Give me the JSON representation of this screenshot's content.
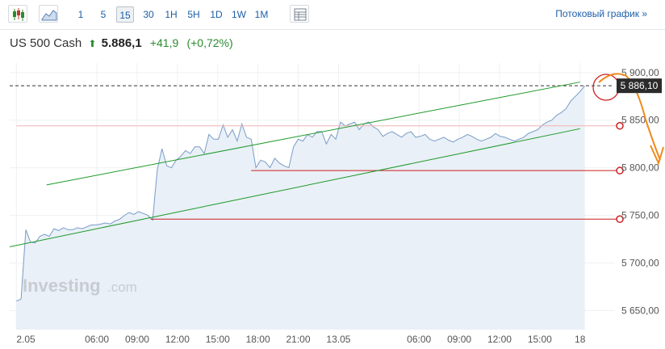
{
  "toolbar": {
    "chart_type_icons": [
      "candlestick-icon",
      "area-chart-icon"
    ],
    "timeframes": [
      "1",
      "5",
      "15",
      "30",
      "1H",
      "5H",
      "1D",
      "1W",
      "1M"
    ],
    "active_timeframe": "15",
    "table_icon": "table-icon",
    "stream_link": "Потоковый график »"
  },
  "header": {
    "instrument": "US 500 Cash",
    "price": "5.886,1",
    "change": "+41,9",
    "change_pct": "(+0,72%)",
    "up_color": "#2a8b2f"
  },
  "watermark": {
    "brand": "Investing",
    "suffix": ".com"
  },
  "chart_data": {
    "type": "area",
    "title": "",
    "xlabel": "",
    "ylabel": "",
    "ylim": [
      5630,
      5910
    ],
    "y_ticks": [
      "5 900,00",
      "5 850,00",
      "5 800,00",
      "5 750,00",
      "5 700,00",
      "5 650,00"
    ],
    "y_tick_values": [
      5900,
      5850,
      5800,
      5750,
      5700,
      5650
    ],
    "x_ticks": [
      "2.05",
      "06:00",
      "09:00",
      "12:00",
      "15:00",
      "18:00",
      "21:00",
      "13.05",
      "06:00",
      "09:00",
      "12:00",
      "15:00",
      "18"
    ],
    "x_tick_index": [
      0,
      24,
      36,
      48,
      60,
      72,
      84,
      96,
      120,
      132,
      144,
      156,
      168
    ],
    "x_index_range": [
      -2,
      176
    ],
    "series": [
      {
        "color": "#7a9cc6",
        "fill": "#e9f0f7",
        "values": [
          5660,
          5662,
          5735,
          5722,
          5721,
          5728,
          5730,
          5728,
          5736,
          5734,
          5737,
          5735,
          5735,
          5737,
          5736,
          5738,
          5740,
          5740,
          5741,
          5742,
          5741,
          5744,
          5746,
          5750,
          5753,
          5751,
          5754,
          5752,
          5750,
          5745,
          5798,
          5820,
          5802,
          5800,
          5808,
          5812,
          5818,
          5815,
          5822,
          5822,
          5815,
          5835,
          5830,
          5830,
          5845,
          5832,
          5840,
          5828,
          5846,
          5832,
          5830,
          5800,
          5808,
          5806,
          5800,
          5810,
          5805,
          5802,
          5800,
          5822,
          5830,
          5828,
          5835,
          5832,
          5838,
          5838,
          5825,
          5835,
          5830,
          5848,
          5844,
          5846,
          5848,
          5840,
          5846,
          5848,
          5843,
          5840,
          5833,
          5836,
          5838,
          5835,
          5832,
          5836,
          5838,
          5832,
          5833,
          5835,
          5830,
          5828,
          5830,
          5832,
          5829,
          5827,
          5830,
          5832,
          5835,
          5833,
          5830,
          5828,
          5830,
          5832,
          5836,
          5833,
          5832,
          5830,
          5828,
          5830,
          5832,
          5836,
          5838,
          5840,
          5845,
          5848,
          5850,
          5855,
          5858,
          5862,
          5870,
          5875,
          5880,
          5886.1
        ],
        "x_start": 0,
        "x_step": 1.4
      }
    ],
    "current_price_label": "5 886,10",
    "current_price": 5886.1,
    "horizontal_levels": [
      {
        "value": 5844,
        "color": "#f2b3b3",
        "from_index": 0
      },
      {
        "value": 5797,
        "color": "#cc1f1f",
        "from_index": 70
      },
      {
        "value": 5746,
        "color": "#cc1f1f",
        "from_index": 40
      }
    ],
    "trend_lines": [
      {
        "color": "#1f9a2a",
        "from": [
          9,
          5782
        ],
        "to": [
          168,
          5890
        ]
      },
      {
        "color": "#1f9a2a",
        "from": [
          -2,
          5717
        ],
        "to": [
          168,
          5841
        ]
      }
    ],
    "grid": true,
    "legend": "none"
  }
}
